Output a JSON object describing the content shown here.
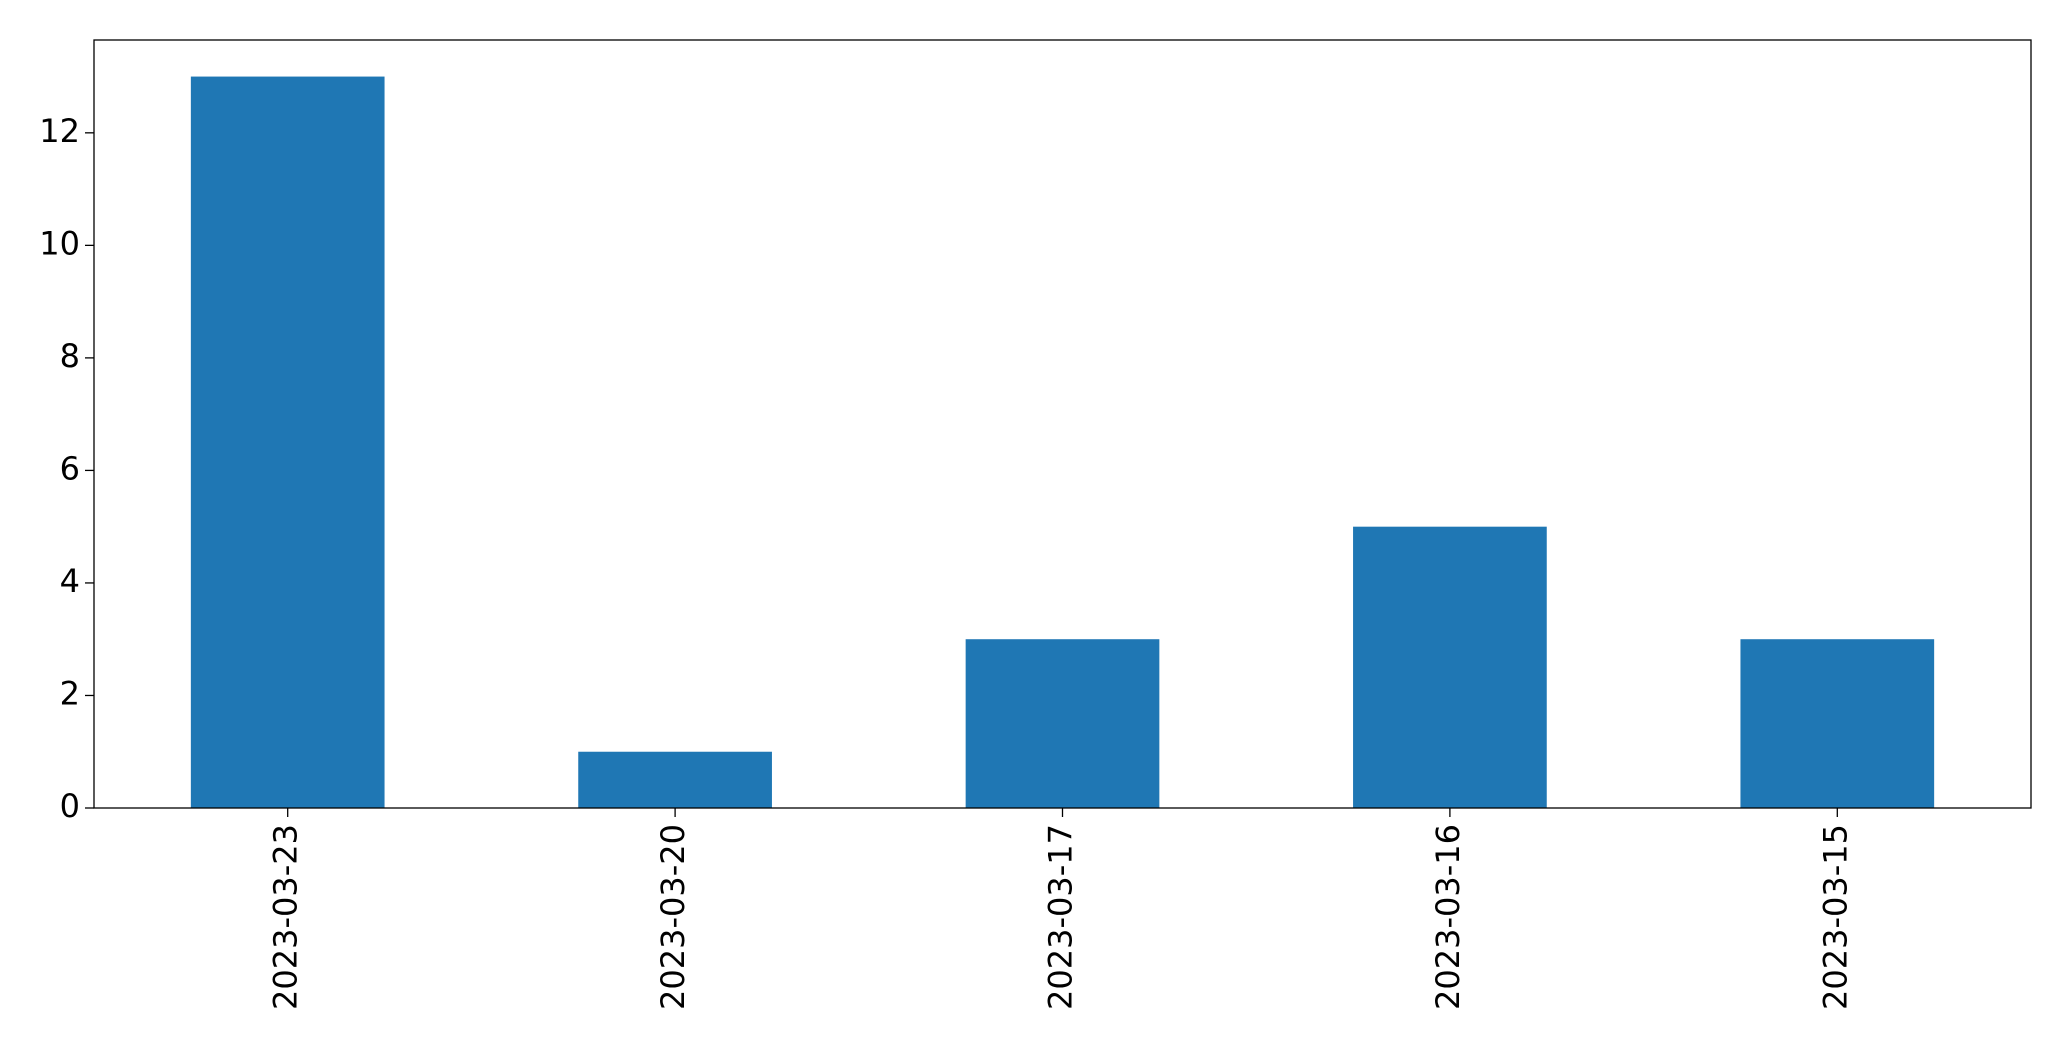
{
  "chart_data": {
    "type": "bar",
    "categories": [
      "2023-03-23",
      "2023-03-20",
      "2023-03-17",
      "2023-03-16",
      "2023-03-15"
    ],
    "values": [
      13,
      1,
      3,
      5,
      3
    ],
    "color": "#1f77b4",
    "ylim": [
      0,
      13.65
    ],
    "yticks": [
      0,
      2,
      4,
      6,
      8,
      10,
      12
    ],
    "grid": false
  }
}
